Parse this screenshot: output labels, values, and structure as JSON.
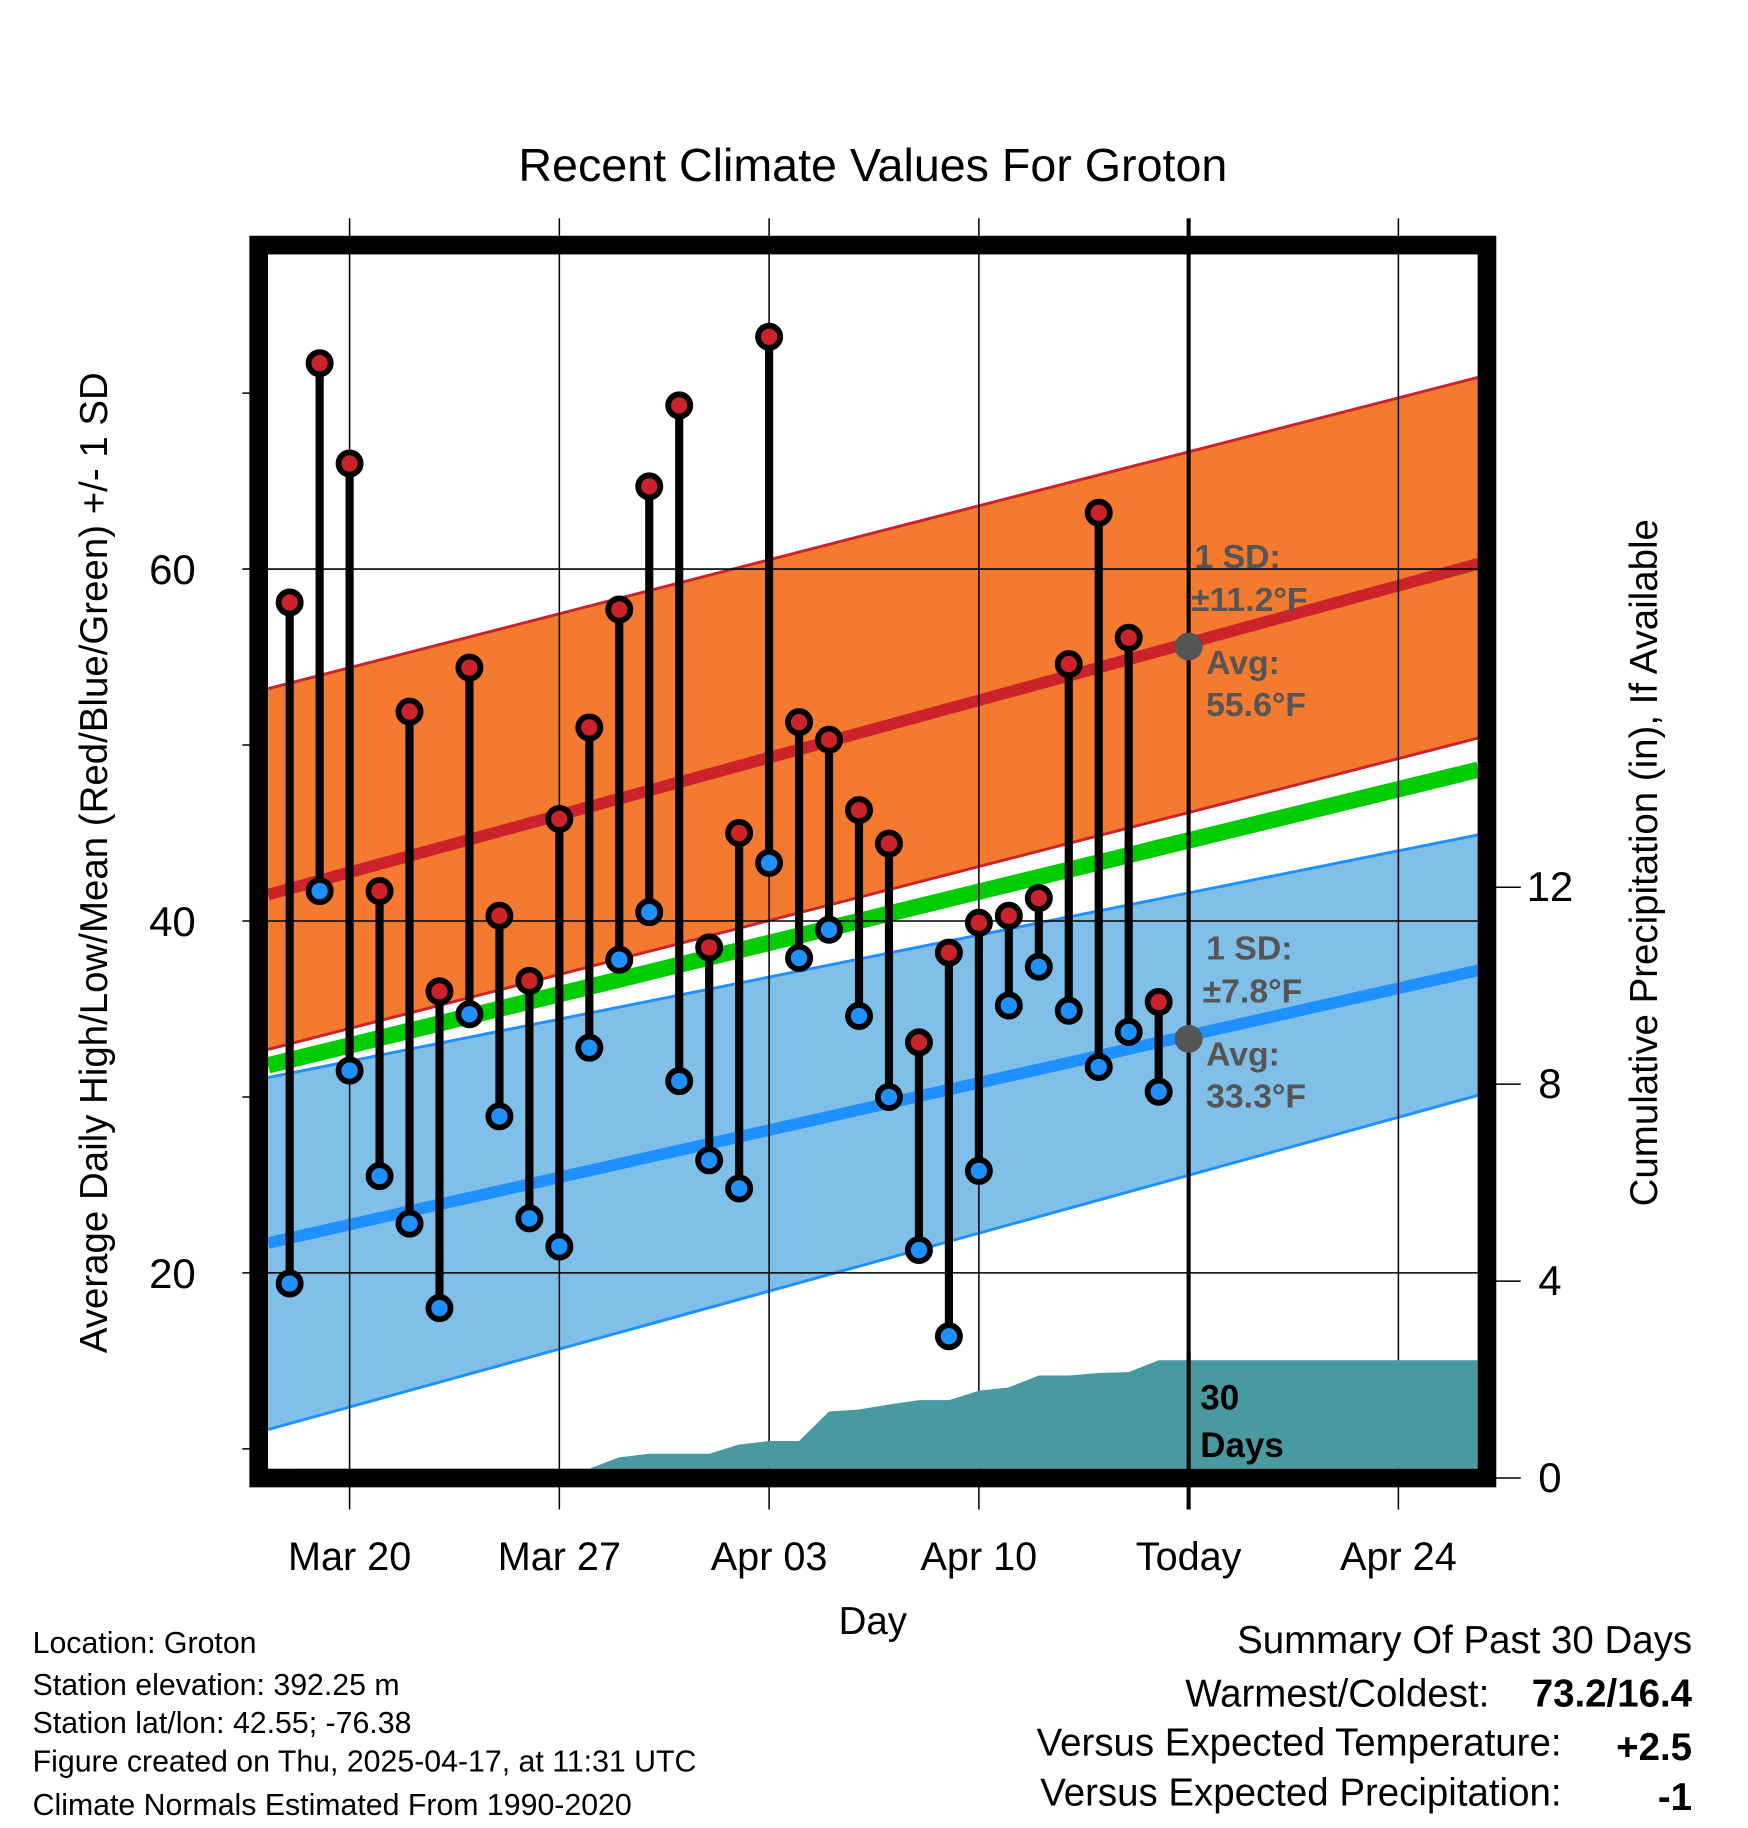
{
  "chart_data": {
    "type": "line",
    "title": "Recent Climate Values For Groton",
    "xlabel": "Day",
    "ylabel": "Average Daily High/Low/Mean (Red/Blue/Green) +/- 1 SD",
    "y2label": "Cumulative Precipitation (in), If Available",
    "x_day_offset_reference": "Mar 20",
    "xlim": [
      -2.72,
      37.67
    ],
    "ylim": [
      8.9,
      77.6
    ],
    "y2lim": [
      0,
      24.5
    ],
    "grid": true,
    "x_ticks": [
      {
        "day": 0,
        "label": "Mar 20"
      },
      {
        "day": 7,
        "label": "Mar 27"
      },
      {
        "day": 14,
        "label": "Apr 03"
      },
      {
        "day": 21,
        "label": "Apr 10"
      },
      {
        "day": 28,
        "label": "Today"
      },
      {
        "day": 35,
        "label": "Apr 24"
      }
    ],
    "y_ticks": [
      20,
      40,
      60
    ],
    "y_minor_ticks": [
      10,
      30,
      50,
      70
    ],
    "y2_ticks": [
      0,
      4,
      8,
      12
    ],
    "dates": [
      "Mar 18",
      "Mar 19",
      "Mar 20",
      "Mar 21",
      "Mar 22",
      "Mar 23",
      "Mar 24",
      "Mar 25",
      "Mar 26",
      "Mar 27",
      "Mar 28",
      "Mar 29",
      "Mar 30",
      "Mar 31",
      "Apr 01",
      "Apr 02",
      "Apr 03",
      "Apr 04",
      "Apr 05",
      "Apr 06",
      "Apr 07",
      "Apr 08",
      "Apr 09",
      "Apr 10",
      "Apr 11",
      "Apr 12",
      "Apr 13",
      "Apr 14",
      "Apr 15",
      "Apr 16"
    ],
    "day_offsets": [
      -2,
      -1,
      0,
      1,
      2,
      3,
      4,
      5,
      6,
      7,
      8,
      9,
      10,
      11,
      12,
      13,
      14,
      15,
      16,
      17,
      18,
      19,
      20,
      21,
      22,
      23,
      24,
      25,
      26,
      27
    ],
    "series": [
      {
        "name": "Daily High",
        "color": "#cc2229",
        "values": [
          58.1,
          71.7,
          66.0,
          41.7,
          51.9,
          36.0,
          54.4,
          40.3,
          36.6,
          45.8,
          51.0,
          57.7,
          64.7,
          69.3,
          38.5,
          45.0,
          73.2,
          51.3,
          50.3,
          46.3,
          44.4,
          33.1,
          38.2,
          39.9,
          40.3,
          41.3,
          54.6,
          63.2,
          56.1,
          35.4
        ]
      },
      {
        "name": "Daily Low",
        "color": "#1e90ff",
        "values": [
          19.4,
          41.7,
          31.5,
          25.5,
          22.8,
          18.0,
          34.7,
          28.9,
          23.1,
          21.5,
          32.8,
          37.8,
          40.5,
          30.9,
          26.4,
          24.8,
          43.3,
          37.9,
          39.5,
          34.6,
          30.0,
          21.3,
          16.4,
          25.8,
          35.2,
          37.4,
          34.9,
          31.7,
          33.7,
          30.3
        ]
      },
      {
        "name": "Cumulative Precipitation (in)",
        "color": "#4899a0",
        "values": [
          0,
          0,
          0,
          0,
          0,
          0,
          0,
          0,
          0,
          0,
          0.05,
          0.28,
          0.35,
          0.35,
          0.35,
          0.54,
          0.61,
          0.61,
          1.21,
          1.25,
          1.35,
          1.44,
          1.44,
          1.63,
          1.7,
          1.94,
          1.94,
          1.99,
          2.01,
          2.25
        ]
      }
    ],
    "normals": {
      "days": [
        -2.72,
        37.67
      ],
      "high_mean": [
        41.5,
        60.3
      ],
      "high_upper": [
        53.2,
        70.9
      ],
      "high_lower": [
        32.7,
        50.4
      ],
      "mean": [
        31.8,
        48.6
      ],
      "low_mean": [
        21.7,
        37.2
      ],
      "low_upper": [
        31.1,
        44.9
      ],
      "low_lower": [
        11.1,
        30.1
      ]
    },
    "today": {
      "day": 28,
      "avg_high": 55.6,
      "avg_low": 33.3
    },
    "colors": {
      "high_band": "#f47a30",
      "high_line": "#cc2229",
      "mean_line": "#00cc00",
      "low_band": "#80bfe8",
      "low_line": "#1e90ff",
      "precip": "#4899a0"
    }
  },
  "annotations": {
    "high_sd_label": "1 SD:",
    "high_sd_value": "±11.2°F",
    "high_avg_label": "Avg:",
    "high_avg_value": "55.6°F",
    "low_sd_label": "1 SD:",
    "low_sd_value": "±7.8°F",
    "low_avg_label": "Avg:",
    "low_avg_value": "33.3°F",
    "precip_days_1": "30",
    "precip_days_2": "Days"
  },
  "footer": {
    "location": "Location: Groton",
    "elevation": "Station elevation: 392.25 m",
    "latlon": "Station lat/lon: 42.55; -76.38",
    "created": "Figure created on Thu, 2025-04-17, at 11:31 UTC",
    "normals": "Climate Normals Estimated From 1990-2020"
  },
  "summary": {
    "title": "Summary Of Past 30 Days",
    "warm_cold_label": "Warmest/Coldest:",
    "warm_cold_value": "73.2/16.4",
    "temp_label": "Versus Expected Temperature:",
    "temp_value": "+2.5",
    "temp_color": "#cc2229",
    "precip_label": "Versus Expected Precipitation:",
    "precip_value": "-1",
    "precip_color": "#a0522d"
  }
}
